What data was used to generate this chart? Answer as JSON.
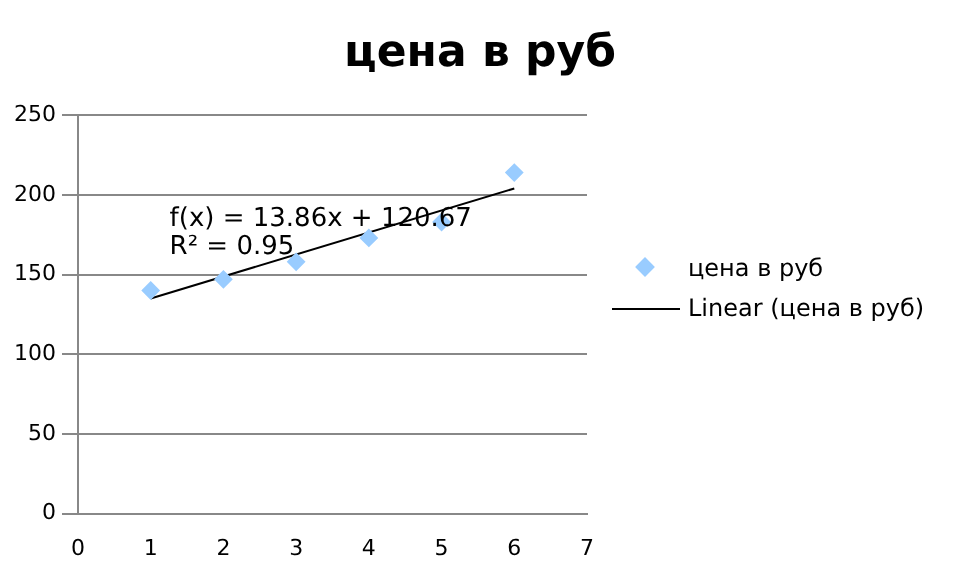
{
  "chart_data": {
    "type": "scatter",
    "title": "цена в руб",
    "x": [
      1,
      2,
      3,
      4,
      5,
      6
    ],
    "series": [
      {
        "name": "цена в руб",
        "color": "#99ccff",
        "values": [
          140,
          147,
          158,
          173,
          183,
          214
        ],
        "marker": "diamond"
      },
      {
        "name": "Linear (цена в руб)",
        "type": "line",
        "color": "#000000",
        "x": [
          1,
          6
        ],
        "values": [
          135,
          204
        ],
        "marker": "none",
        "line_style": "solid"
      }
    ],
    "xlim": [
      0,
      7
    ],
    "xticks": [
      0,
      1,
      2,
      3,
      4,
      5,
      6,
      7
    ],
    "ylim": [
      0,
      250
    ],
    "yticks": [
      0,
      50,
      100,
      150,
      200,
      250
    ],
    "grid": "y",
    "legend": "right",
    "annotations": [
      "f(x) = 13.86x + 120.67",
      "R² = 0.95"
    ]
  }
}
